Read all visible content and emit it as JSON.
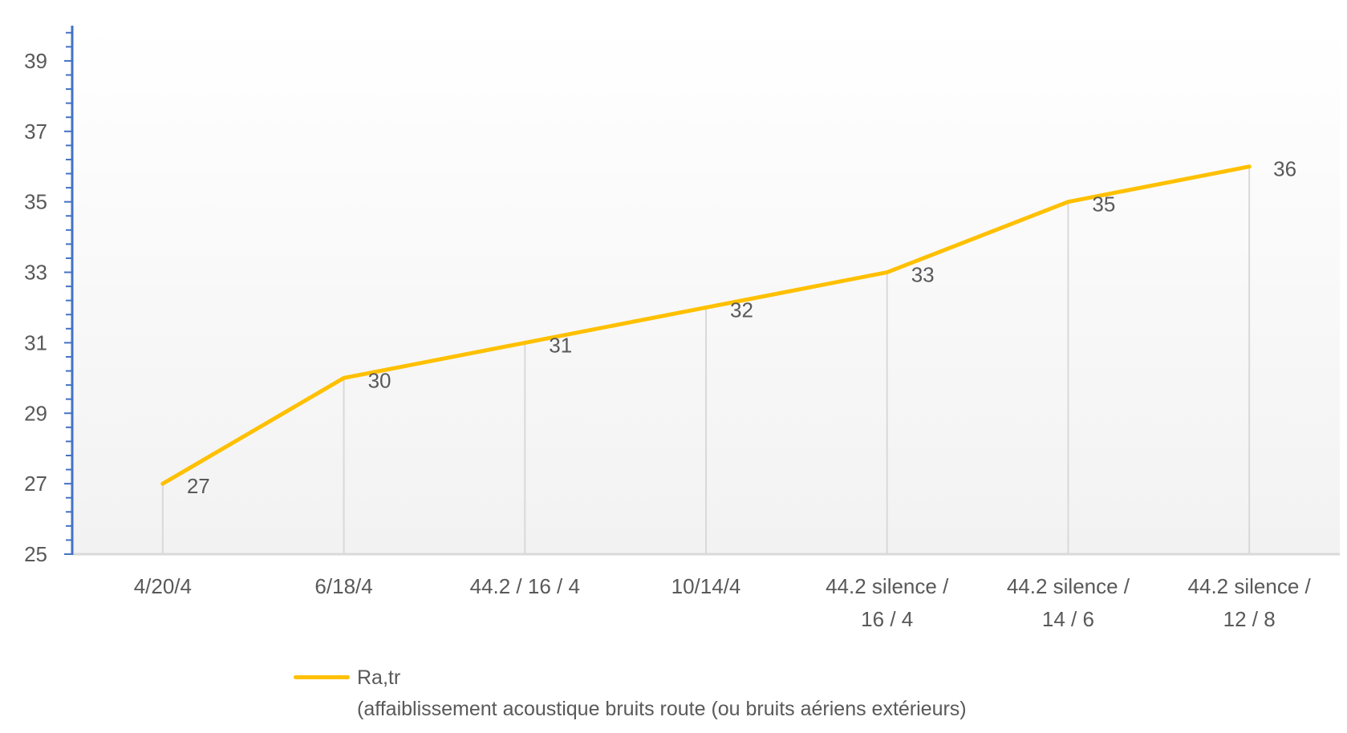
{
  "chart_data": {
    "type": "line",
    "title": "",
    "xlabel": "",
    "ylabel": "",
    "categories": [
      [
        "4/20/4"
      ],
      [
        "6/18/4"
      ],
      [
        "44.2 / 16 / 4"
      ],
      [
        "10/14/4"
      ],
      [
        "44.2 silence /",
        "16 / 4"
      ],
      [
        "44.2 silence /",
        "14 / 6"
      ],
      [
        "44.2 silence /",
        "12 / 8"
      ]
    ],
    "series": [
      {
        "name": "Ra,tr",
        "description": "(affaiblissement acoustique bruits route (ou bruits aériens extérieurs)",
        "values": [
          27,
          30,
          31,
          32,
          33,
          35,
          36
        ],
        "color": "#FFC000"
      }
    ],
    "ylim": [
      25,
      40
    ],
    "yticks": [
      25,
      27,
      29,
      31,
      33,
      35,
      37,
      39
    ],
    "y_minor_step": 0.4,
    "drop_lines": true,
    "data_labels": true,
    "legend_position": "bottom",
    "axis_color": "#4472C4"
  }
}
